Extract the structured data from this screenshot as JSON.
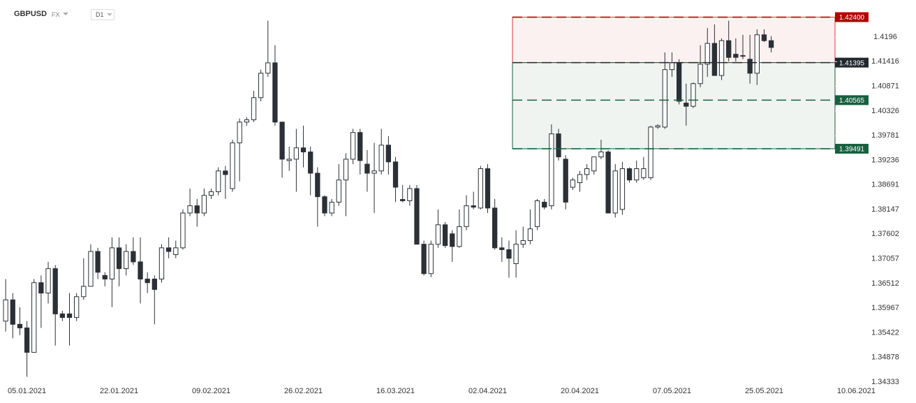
{
  "header": {
    "symbol": "GBPUSD",
    "market": "FX",
    "interval": "D1"
  },
  "chart_data": {
    "type": "candlestick",
    "xlim": [
      -0.8,
      117
    ],
    "ylim": [
      1.34333,
      1.42748
    ],
    "xticks": [
      {
        "value": 3,
        "label": "05.01.2021"
      },
      {
        "value": 16,
        "label": "22.01.2021"
      },
      {
        "value": 29,
        "label": "09.02.2021"
      },
      {
        "value": 42,
        "label": "26.02.2021"
      },
      {
        "value": 55,
        "label": "16.03.2021"
      },
      {
        "value": 68,
        "label": "02.04.2021"
      },
      {
        "value": 81,
        "label": "20.04.2021"
      },
      {
        "value": 94,
        "label": "07.05.2021"
      },
      {
        "value": 107,
        "label": "25.05.2021"
      },
      {
        "value": 120,
        "label": "10.06.2021"
      }
    ],
    "yticks": [
      1.34333,
      1.34878,
      1.35422,
      1.35967,
      1.36512,
      1.37057,
      1.37602,
      1.38147,
      1.38691,
      1.39236,
      1.39781,
      1.40326,
      1.40871,
      1.41416,
      1.4196
    ],
    "up_color": "#ffffff",
    "down_color": "#2b3036",
    "levels": [
      {
        "value": 1.424,
        "label": "1.42400",
        "color": "#b30000"
      },
      {
        "value": 1.41395,
        "color": "#22282e"
      },
      {
        "value": 1.40565,
        "color": "#17603f"
      },
      {
        "value": 1.39491,
        "color": "#17603f"
      }
    ],
    "zones": [
      {
        "start": 72,
        "from": 1.41395,
        "to": 1.424,
        "color": "#d93636"
      },
      {
        "start": 72,
        "from": 1.39491,
        "to": 1.41395,
        "color": "#17603f"
      }
    ],
    "ohlc": [
      [
        1.3568,
        1.3661,
        1.3545,
        1.3615
      ],
      [
        1.3615,
        1.363,
        1.353,
        1.3561
      ],
      [
        1.3561,
        1.3599,
        1.3537,
        1.3553
      ],
      [
        1.3553,
        1.3568,
        1.3445,
        1.3499
      ],
      [
        1.3499,
        1.3661,
        1.3499,
        1.3653
      ],
      [
        1.3653,
        1.3669,
        1.3553,
        1.363
      ],
      [
        1.363,
        1.3699,
        1.3607,
        1.3684
      ],
      [
        1.3684,
        1.3692,
        1.3514,
        1.3584
      ],
      [
        1.3584,
        1.3591,
        1.3568,
        1.3576
      ],
      [
        1.3584,
        1.363,
        1.3514,
        1.3576
      ],
      [
        1.3576,
        1.363,
        1.3568,
        1.3622
      ],
      [
        1.3622,
        1.3707,
        1.3615,
        1.3645
      ],
      [
        1.3645,
        1.3738,
        1.3645,
        1.3722
      ],
      [
        1.3722,
        1.373,
        1.3661,
        1.3676
      ],
      [
        1.3669,
        1.3676,
        1.3645,
        1.3661
      ],
      [
        1.3661,
        1.3753,
        1.3599,
        1.373
      ],
      [
        1.373,
        1.3753,
        1.3645,
        1.3684
      ],
      [
        1.3684,
        1.3738,
        1.3669,
        1.3722
      ],
      [
        1.3722,
        1.3753,
        1.3692,
        1.3699
      ],
      [
        1.3699,
        1.3753,
        1.3607,
        1.3661
      ],
      [
        1.3661,
        1.3676,
        1.363,
        1.3653
      ],
      [
        1.3661,
        1.3669,
        1.3561,
        1.3638
      ],
      [
        1.3661,
        1.3738,
        1.3653,
        1.373
      ],
      [
        1.373,
        1.3753,
        1.3707,
        1.3722
      ],
      [
        1.3715,
        1.3746,
        1.3707,
        1.373
      ],
      [
        1.373,
        1.3815,
        1.3726,
        1.3807
      ],
      [
        1.3807,
        1.3861,
        1.38,
        1.3823
      ],
      [
        1.3823,
        1.3838,
        1.3777,
        1.3807
      ],
      [
        1.3807,
        1.3861,
        1.38,
        1.3846
      ],
      [
        1.3846,
        1.3861,
        1.3838,
        1.3854
      ],
      [
        1.3854,
        1.3908,
        1.3846,
        1.39
      ],
      [
        1.39,
        1.3911,
        1.3838,
        1.3892
      ],
      [
        1.3861,
        1.3969,
        1.3854,
        1.3962
      ],
      [
        1.3962,
        1.4016,
        1.3877,
        1.4008
      ],
      [
        1.4008,
        1.4019,
        1.4,
        1.4013
      ],
      [
        1.4013,
        1.4077,
        1.4008,
        1.4062
      ],
      [
        1.4062,
        1.4124,
        1.4054,
        1.4116
      ],
      [
        1.4116,
        1.4232,
        1.4108,
        1.4139
      ],
      [
        1.4139,
        1.4178,
        1.4,
        1.4008
      ],
      [
        1.4008,
        1.4008,
        1.3885,
        1.3926
      ],
      [
        1.3923,
        1.3954,
        1.39,
        1.3926
      ],
      [
        1.3926,
        1.3993,
        1.3854,
        1.3951
      ],
      [
        1.3951,
        1.4,
        1.3908,
        1.3942
      ],
      [
        1.3942,
        1.3954,
        1.3846,
        1.3895
      ],
      [
        1.3895,
        1.3908,
        1.3777,
        1.3843
      ],
      [
        1.3843,
        1.3846,
        1.38,
        1.3807
      ],
      [
        1.3807,
        1.3838,
        1.38,
        1.3831
      ],
      [
        1.3831,
        1.3915,
        1.3823,
        1.388
      ],
      [
        1.388,
        1.3939,
        1.38,
        1.3926
      ],
      [
        1.3926,
        1.3993,
        1.3915,
        1.3985
      ],
      [
        1.3985,
        1.3993,
        1.3892,
        1.3923
      ],
      [
        1.3915,
        1.3946,
        1.3854,
        1.3895
      ],
      [
        1.3895,
        1.3962,
        1.3807,
        1.39
      ],
      [
        1.39,
        1.3993,
        1.3892,
        1.3957
      ],
      [
        1.3957,
        1.3977,
        1.3892,
        1.392
      ],
      [
        1.392,
        1.3931,
        1.3831,
        1.3864
      ],
      [
        1.3837,
        1.3869,
        1.3831,
        1.3834
      ],
      [
        1.3834,
        1.3869,
        1.3823,
        1.3861
      ],
      [
        1.3861,
        1.3869,
        1.3738,
        1.3738
      ],
      [
        1.3738,
        1.3746,
        1.3669,
        1.3673
      ],
      [
        1.3673,
        1.3746,
        1.3665,
        1.3738
      ],
      [
        1.3738,
        1.3815,
        1.373,
        1.3781
      ],
      [
        1.3781,
        1.3787,
        1.373,
        1.3735
      ],
      [
        1.3761,
        1.3769,
        1.3699,
        1.3733
      ],
      [
        1.3733,
        1.3815,
        1.373,
        1.3777
      ],
      [
        1.3777,
        1.3846,
        1.3769,
        1.3823
      ],
      [
        1.3823,
        1.3854,
        1.3815,
        1.382
      ],
      [
        1.3818,
        1.3911,
        1.3815,
        1.3905
      ],
      [
        1.3905,
        1.3915,
        1.3807,
        1.3818
      ],
      [
        1.3818,
        1.3838,
        1.3726,
        1.373
      ],
      [
        1.373,
        1.3753,
        1.3699,
        1.3726
      ],
      [
        1.3726,
        1.3746,
        1.3664,
        1.3707
      ],
      [
        1.3695,
        1.3769,
        1.3664,
        1.3738
      ],
      [
        1.3738,
        1.3777,
        1.373,
        1.3746
      ],
      [
        1.3746,
        1.3815,
        1.3738,
        1.3772
      ],
      [
        1.3777,
        1.3838,
        1.3769,
        1.3834
      ],
      [
        1.3831,
        1.3838,
        1.3815,
        1.382
      ],
      [
        1.3823,
        1.4003,
        1.3815,
        1.3982
      ],
      [
        1.3982,
        1.3993,
        1.3923,
        1.3931
      ],
      [
        1.3926,
        1.3935,
        1.3815,
        1.3831
      ],
      [
        1.3864,
        1.3885,
        1.3858,
        1.388
      ],
      [
        1.3874,
        1.39,
        1.3854,
        1.3892
      ],
      [
        1.3892,
        1.3915,
        1.388,
        1.3905
      ],
      [
        1.39,
        1.3931,
        1.3892,
        1.3931
      ],
      [
        1.3931,
        1.3969,
        1.3926,
        1.3942
      ],
      [
        1.3942,
        1.3946,
        1.3807,
        1.3807
      ],
      [
        1.3807,
        1.3915,
        1.3797,
        1.39
      ],
      [
        1.3815,
        1.392,
        1.3803,
        1.3905
      ],
      [
        1.3905,
        1.3908,
        1.3874,
        1.388
      ],
      [
        1.388,
        1.3923,
        1.3874,
        1.3905
      ],
      [
        1.3885,
        1.3931,
        1.388,
        1.3905
      ],
      [
        1.3885,
        1.4,
        1.388,
        1.3997
      ],
      [
        1.3997,
        1.4003,
        1.3993,
        1.4
      ],
      [
        1.3997,
        1.4162,
        1.3993,
        1.4124
      ],
      [
        1.4124,
        1.4162,
        1.4108,
        1.4139
      ],
      [
        1.4139,
        1.4147,
        1.4047,
        1.4054
      ],
      [
        1.405,
        1.4093,
        1.4,
        1.4043
      ],
      [
        1.4043,
        1.4096,
        1.4039,
        1.4093
      ],
      [
        1.4093,
        1.4178,
        1.4085,
        1.4136
      ],
      [
        1.4136,
        1.4216,
        1.4108,
        1.4182
      ],
      [
        1.4182,
        1.4224,
        1.4111,
        1.4111
      ],
      [
        1.4111,
        1.4193,
        1.4101,
        1.4188
      ],
      [
        1.4188,
        1.4232,
        1.4142,
        1.4151
      ],
      [
        1.4158,
        1.4193,
        1.4142,
        1.4151
      ],
      [
        1.4155,
        1.4201,
        1.4147,
        1.4155
      ],
      [
        1.4147,
        1.4201,
        1.4093,
        1.4116
      ],
      [
        1.4116,
        1.4213,
        1.409,
        1.4201
      ],
      [
        1.4201,
        1.4213,
        1.4185,
        1.4188
      ],
      [
        1.4188,
        1.4198,
        1.4162,
        1.4173
      ]
    ]
  }
}
